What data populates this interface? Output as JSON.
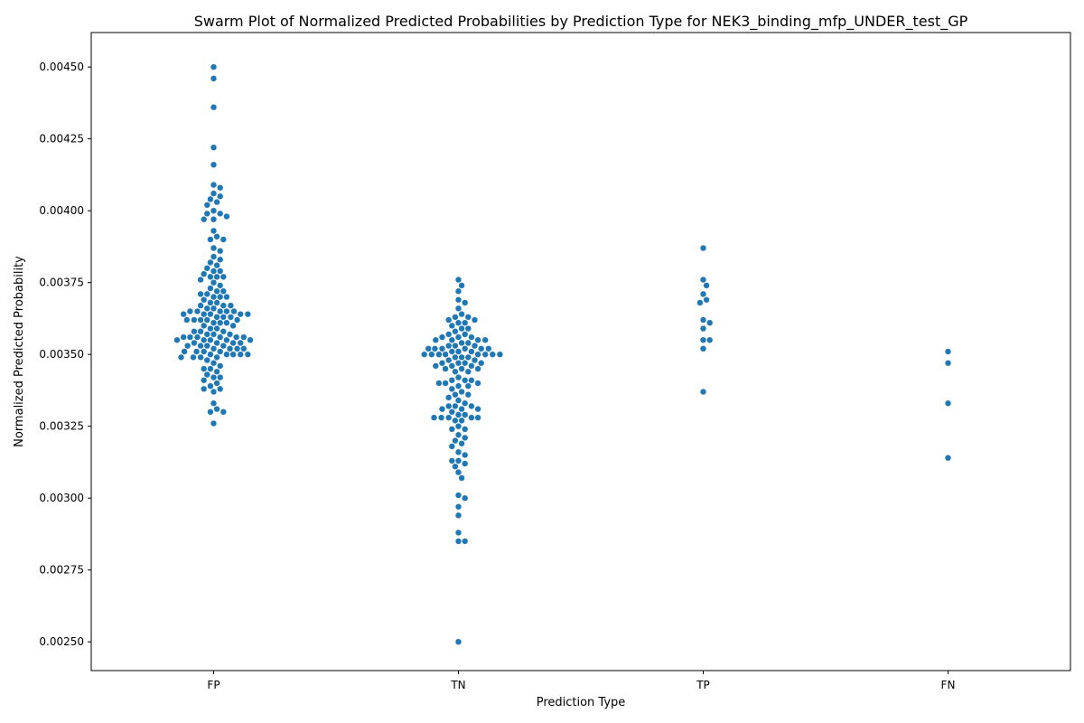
{
  "chart_data": {
    "type": "scatter",
    "subtype": "swarm",
    "title": "Swarm Plot of Normalized Predicted Probabilities by Prediction Type for NEK3_binding_mfp_UNDER_test_GP",
    "xlabel": "Prediction Type",
    "ylabel": "Normalized Predicted Probability",
    "categories": [
      "FP",
      "TN",
      "TP",
      "FN"
    ],
    "ylim": [
      0.0024,
      0.00462
    ],
    "yticks": [
      0.0025,
      0.00275,
      0.003,
      0.00325,
      0.0035,
      0.00375,
      0.004,
      0.00425,
      0.0045
    ],
    "ytick_labels": [
      "0.00250",
      "0.00275",
      "0.00300",
      "0.00325",
      "0.00350",
      "0.00375",
      "0.00400",
      "0.00425",
      "0.00450"
    ],
    "grid": false,
    "legend": "none",
    "point_color": "#1f77b4",
    "series": [
      {
        "category": "FP",
        "values": [
          0.0045,
          0.00446,
          0.00436,
          0.00422,
          0.00416,
          0.00409,
          0.00408,
          0.00406,
          0.00405,
          0.00404,
          0.00403,
          0.00402,
          0.004,
          0.00399,
          0.00399,
          0.00398,
          0.00397,
          0.00397,
          0.00393,
          0.00391,
          0.0039,
          0.0039,
          0.00387,
          0.00386,
          0.00384,
          0.00383,
          0.00382,
          0.00381,
          0.0038,
          0.00379,
          0.00379,
          0.00378,
          0.00377,
          0.00377,
          0.00377,
          0.00376,
          0.00375,
          0.00374,
          0.00373,
          0.00372,
          0.00372,
          0.00371,
          0.00371,
          0.0037,
          0.0037,
          0.0037,
          0.00369,
          0.00368,
          0.00368,
          0.00367,
          0.00367,
          0.00367,
          0.00366,
          0.00366,
          0.00365,
          0.00365,
          0.00365,
          0.00365,
          0.00365,
          0.00364,
          0.00364,
          0.00364,
          0.00364,
          0.00364,
          0.00363,
          0.00363,
          0.00363,
          0.00362,
          0.00362,
          0.00362,
          0.00362,
          0.00362,
          0.00361,
          0.00361,
          0.00361,
          0.0036,
          0.0036,
          0.00359,
          0.00359,
          0.00358,
          0.00358,
          0.00358,
          0.00357,
          0.00357,
          0.00357,
          0.00356,
          0.00356,
          0.00356,
          0.00356,
          0.00356,
          0.00356,
          0.00355,
          0.00355,
          0.00355,
          0.00355,
          0.00355,
          0.00354,
          0.00354,
          0.00354,
          0.00354,
          0.00353,
          0.00353,
          0.00353,
          0.00353,
          0.00352,
          0.00352,
          0.00352,
          0.00352,
          0.00351,
          0.00351,
          0.00351,
          0.00351,
          0.0035,
          0.0035,
          0.0035,
          0.0035,
          0.0035,
          0.00349,
          0.00349,
          0.00349,
          0.00349,
          0.00348,
          0.00347,
          0.00346,
          0.00345,
          0.00345,
          0.00344,
          0.00343,
          0.00342,
          0.00342,
          0.00341,
          0.0034,
          0.00339,
          0.00338,
          0.00338,
          0.00337,
          0.00333,
          0.00331,
          0.0033,
          0.0033,
          0.00326
        ]
      },
      {
        "category": "TN",
        "values": [
          0.00376,
          0.00374,
          0.00372,
          0.00369,
          0.00368,
          0.00366,
          0.00364,
          0.00363,
          0.00363,
          0.00362,
          0.00362,
          0.00361,
          0.00361,
          0.0036,
          0.00359,
          0.00359,
          0.00358,
          0.00357,
          0.00357,
          0.00356,
          0.00356,
          0.00356,
          0.00355,
          0.00355,
          0.00355,
          0.00355,
          0.00354,
          0.00354,
          0.00353,
          0.00353,
          0.00353,
          0.00352,
          0.00352,
          0.00352,
          0.00352,
          0.00352,
          0.00352,
          0.00351,
          0.00351,
          0.00351,
          0.0035,
          0.0035,
          0.0035,
          0.0035,
          0.0035,
          0.0035,
          0.0035,
          0.0035,
          0.00349,
          0.00349,
          0.00349,
          0.00348,
          0.00348,
          0.00347,
          0.00347,
          0.00347,
          0.00347,
          0.00346,
          0.00346,
          0.00346,
          0.00345,
          0.00345,
          0.00345,
          0.00344,
          0.00344,
          0.00342,
          0.00341,
          0.00341,
          0.00341,
          0.0034,
          0.0034,
          0.0034,
          0.00339,
          0.00339,
          0.00338,
          0.00337,
          0.00336,
          0.00336,
          0.00335,
          0.00334,
          0.00333,
          0.00332,
          0.00332,
          0.00332,
          0.00331,
          0.00331,
          0.00331,
          0.0033,
          0.00329,
          0.00329,
          0.00328,
          0.00328,
          0.00328,
          0.00328,
          0.00328,
          0.00327,
          0.00327,
          0.00325,
          0.00324,
          0.00324,
          0.00322,
          0.00321,
          0.0032,
          0.00319,
          0.00318,
          0.00316,
          0.00315,
          0.00313,
          0.00313,
          0.00312,
          0.00311,
          0.00309,
          0.00307,
          0.00301,
          0.003,
          0.00297,
          0.00294,
          0.00288,
          0.00285,
          0.00285,
          0.0025
        ]
      },
      {
        "category": "TP",
        "values": [
          0.00387,
          0.00376,
          0.00374,
          0.00371,
          0.00369,
          0.00368,
          0.00362,
          0.00361,
          0.00359,
          0.00355,
          0.00355,
          0.00352,
          0.00337
        ]
      },
      {
        "category": "FN",
        "values": [
          0.00351,
          0.00347,
          0.00333,
          0.00314
        ]
      }
    ]
  }
}
